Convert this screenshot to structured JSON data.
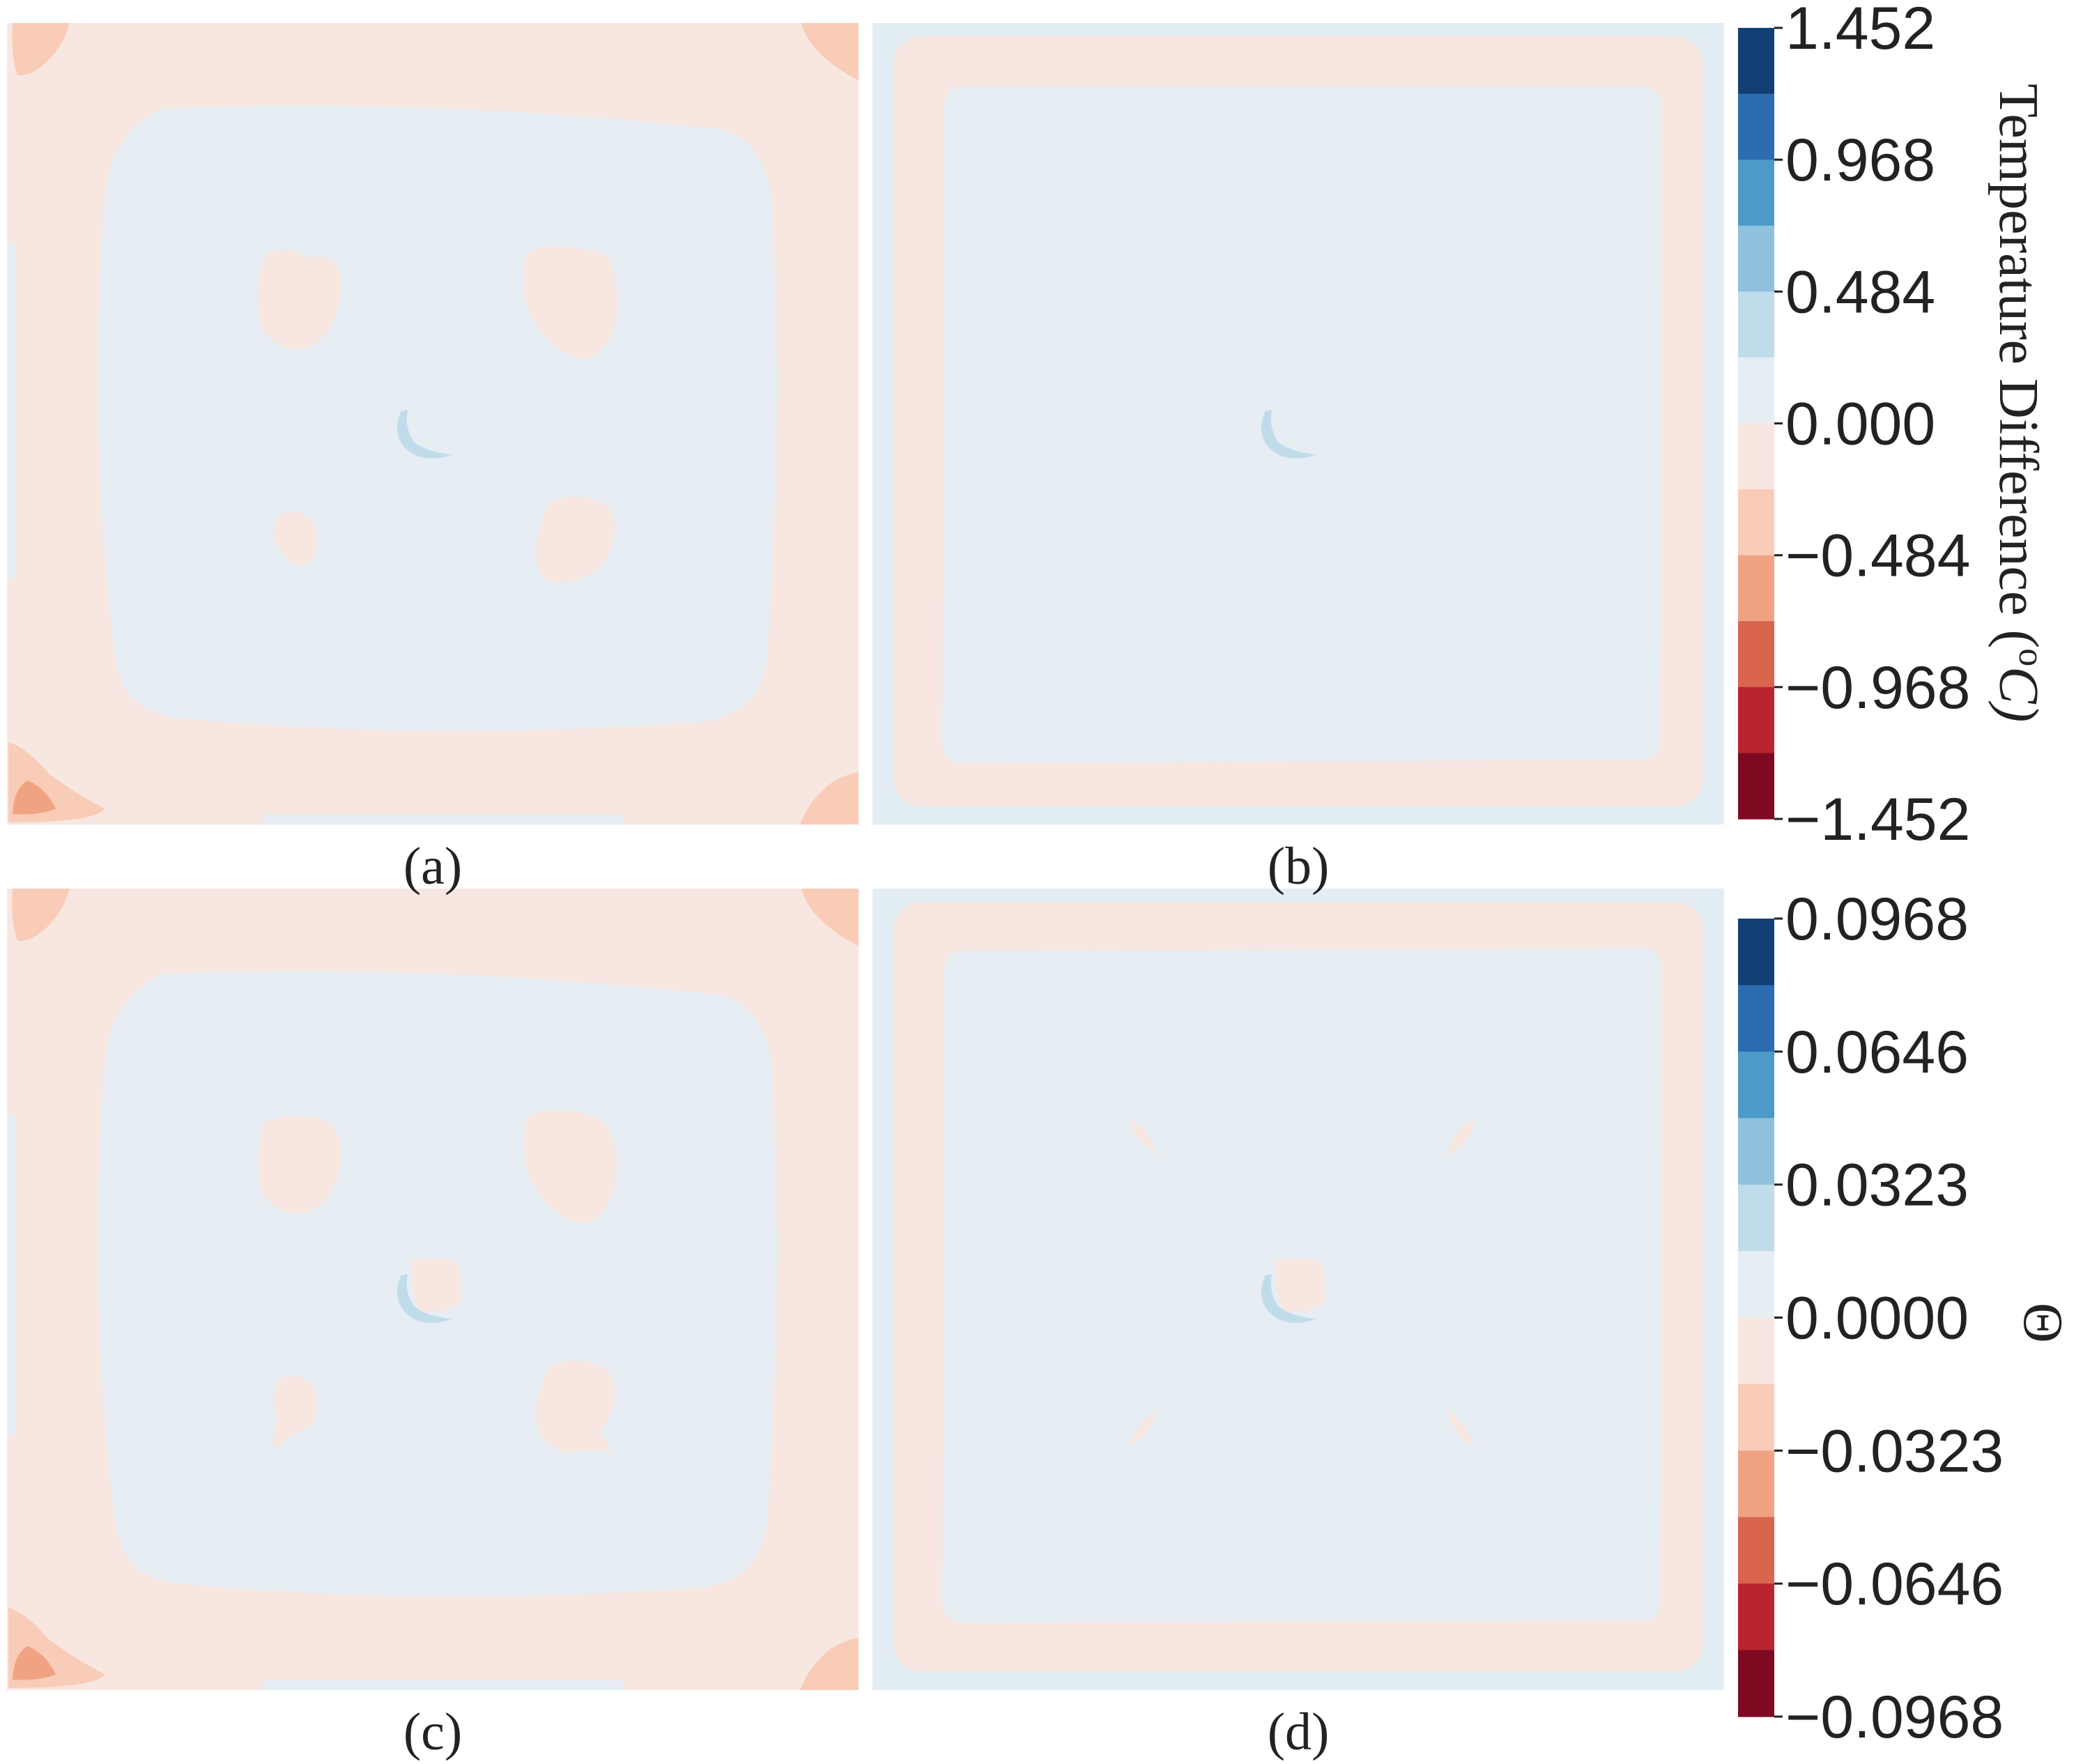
{
  "chart_data": [
    {
      "type": "heatmap",
      "panel": "(a)",
      "description_of_field": "contour map of temperature difference",
      "levels_ref": "colorbar_top"
    },
    {
      "type": "heatmap",
      "panel": "(b)",
      "levels_ref": "colorbar_top"
    },
    {
      "type": "heatmap",
      "panel": "(c)",
      "levels_ref": "colorbar_bottom"
    },
    {
      "type": "heatmap",
      "panel": "(d)",
      "levels_ref": "colorbar_bottom"
    }
  ],
  "colorbar_top": {
    "title": "Temperature Difference (°C)",
    "title_main": "Temperature Difference (",
    "title_unit": "o",
    "title_c": "C)",
    "ticks": [
      "1.452",
      "0.968",
      "0.484",
      "0.000",
      "−0.484",
      "−0.968",
      "−1.452"
    ],
    "range": [
      -1.452,
      1.452
    ]
  },
  "colorbar_bottom": {
    "title": "Θ",
    "ticks": [
      "0.0968",
      "0.0646",
      "0.0323",
      "0.0000",
      "−0.0323",
      "−0.0646",
      "−0.0968"
    ],
    "range": [
      -0.0968,
      0.0968
    ]
  },
  "colors": {
    "levels_top_to_bottom": [
      "#123f73",
      "#2b6cb0",
      "#4b9ac8",
      "#8fc1de",
      "#c0dcea",
      "#e6eef3",
      "#f8e7e1",
      "#f9ccb7",
      "#f0a383",
      "#d9654f",
      "#b8252e",
      "#7e0a22"
    ],
    "near_zero_negative": "#f8e7e1",
    "near_zero_positive": "#e6eef3",
    "weak_negative": "#f9ccb7",
    "moderate_negative": "#f0a383",
    "weak_positive": "#c0dcea",
    "frame": "#e2edf4"
  },
  "panel_labels": [
    "(a)",
    "(b)",
    "(c)",
    "(d)"
  ]
}
